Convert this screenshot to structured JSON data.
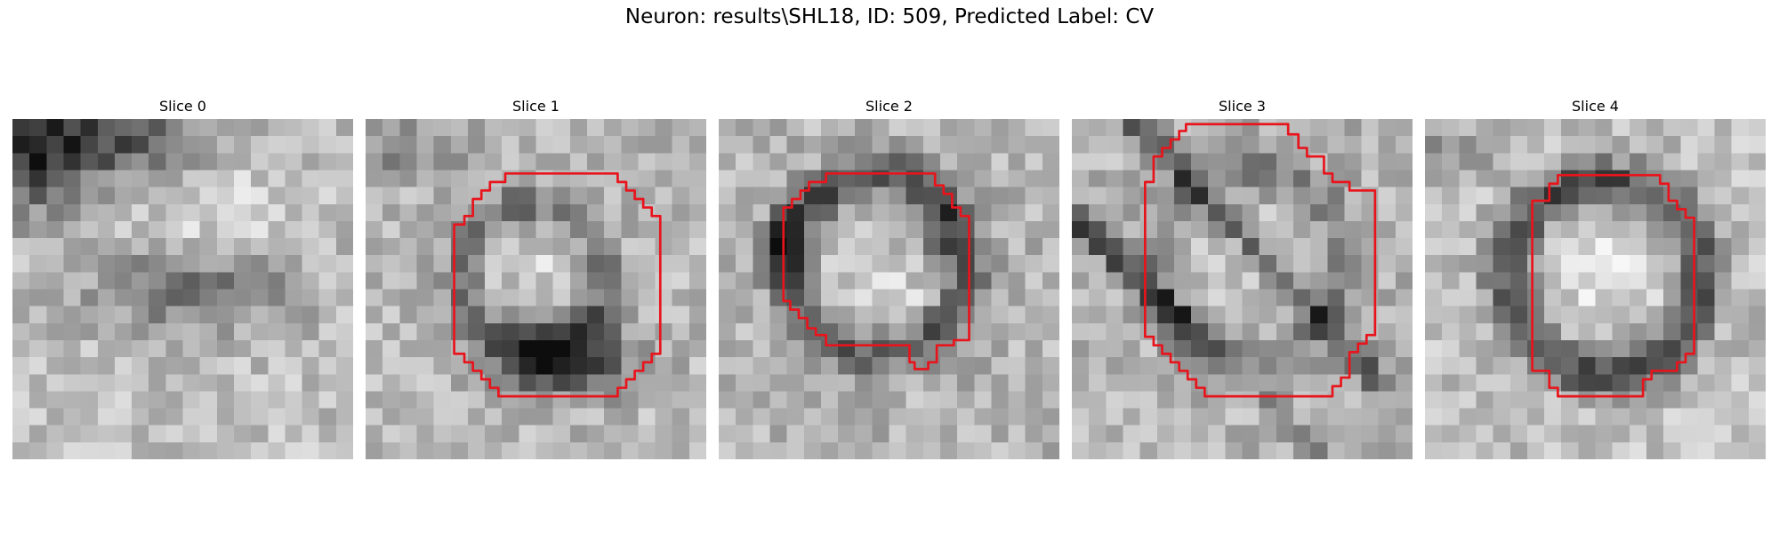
{
  "figure": {
    "title": "Neuron: results\\SHL18, ID: 509, Predicted Label: CV"
  },
  "colors": {
    "background": "#ffffff",
    "contour": "#e8141c",
    "image_colormap": "grayscale"
  },
  "panels": [
    {
      "title": "Slice 0",
      "has_contour": false,
      "dark_features": [
        {
          "kind": "band",
          "desc": "dark upper-left band"
        },
        {
          "kind": "blob",
          "desc": "dark central horizontal smear"
        }
      ]
    },
    {
      "title": "Slice 1",
      "has_contour": true,
      "contour": [
        [
          8.7,
          3.2
        ],
        [
          14.8,
          3.2
        ],
        [
          14.8,
          3.7
        ],
        [
          15.3,
          3.7
        ],
        [
          15.3,
          4.2
        ],
        [
          15.8,
          4.2
        ],
        [
          15.8,
          4.7
        ],
        [
          16.3,
          4.7
        ],
        [
          16.3,
          5.2
        ],
        [
          16.8,
          5.2
        ],
        [
          16.8,
          5.7
        ],
        [
          17.3,
          5.7
        ],
        [
          17.3,
          13.8
        ],
        [
          16.8,
          13.8
        ],
        [
          16.8,
          14.3
        ],
        [
          16.3,
          14.3
        ],
        [
          16.3,
          14.8
        ],
        [
          15.8,
          14.8
        ],
        [
          15.8,
          15.3
        ],
        [
          15.3,
          15.3
        ],
        [
          15.3,
          15.8
        ],
        [
          14.8,
          15.8
        ],
        [
          14.8,
          16.3
        ],
        [
          7.8,
          16.3
        ],
        [
          7.8,
          15.8
        ],
        [
          7.3,
          15.8
        ],
        [
          7.3,
          15.3
        ],
        [
          6.8,
          15.3
        ],
        [
          6.8,
          14.8
        ],
        [
          6.3,
          14.8
        ],
        [
          6.3,
          14.3
        ],
        [
          5.8,
          14.3
        ],
        [
          5.8,
          13.8
        ],
        [
          5.2,
          13.8
        ],
        [
          5.2,
          6.2
        ],
        [
          5.8,
          6.2
        ],
        [
          5.8,
          5.7
        ],
        [
          6.3,
          5.7
        ],
        [
          6.3,
          4.7
        ],
        [
          6.8,
          4.7
        ],
        [
          6.8,
          4.2
        ],
        [
          7.3,
          4.2
        ],
        [
          7.3,
          3.7
        ],
        [
          8.2,
          3.7
        ],
        [
          8.2,
          3.2
        ]
      ],
      "dark_features": [
        {
          "kind": "blob",
          "desc": "dark lower-center blob"
        },
        {
          "kind": "ring",
          "desc": "faint dark ring"
        }
      ]
    },
    {
      "title": "Slice 2",
      "has_contour": true,
      "contour": [
        [
          6.3,
          3.2
        ],
        [
          12.7,
          3.2
        ],
        [
          12.7,
          3.9
        ],
        [
          13.2,
          3.9
        ],
        [
          13.2,
          4.4
        ],
        [
          13.7,
          4.4
        ],
        [
          13.7,
          5.2
        ],
        [
          14.2,
          5.2
        ],
        [
          14.2,
          5.7
        ],
        [
          14.7,
          5.7
        ],
        [
          14.7,
          13.0
        ],
        [
          13.8,
          13.0
        ],
        [
          13.8,
          13.3
        ],
        [
          12.8,
          13.3
        ],
        [
          12.8,
          14.3
        ],
        [
          12.3,
          14.3
        ],
        [
          12.3,
          14.7
        ],
        [
          11.5,
          14.7
        ],
        [
          11.5,
          14.3
        ],
        [
          11.2,
          14.3
        ],
        [
          11.2,
          13.3
        ],
        [
          6.3,
          13.3
        ],
        [
          6.3,
          12.7
        ],
        [
          5.7,
          12.7
        ],
        [
          5.7,
          12.3
        ],
        [
          5.2,
          12.3
        ],
        [
          5.2,
          11.7
        ],
        [
          4.7,
          11.7
        ],
        [
          4.7,
          11.2
        ],
        [
          4.2,
          11.2
        ],
        [
          4.2,
          10.7
        ],
        [
          3.8,
          10.7
        ],
        [
          3.8,
          5.2
        ],
        [
          4.3,
          5.2
        ],
        [
          4.3,
          4.7
        ],
        [
          4.8,
          4.7
        ],
        [
          4.8,
          4.2
        ],
        [
          5.3,
          4.2
        ],
        [
          5.3,
          3.7
        ],
        [
          6.3,
          3.7
        ]
      ],
      "dark_features": [
        {
          "kind": "ring",
          "desc": "dark membrane ring"
        }
      ]
    },
    {
      "title": "Slice 3",
      "has_contour": true,
      "contour": [
        [
          6.7,
          0.3
        ],
        [
          12.7,
          0.3
        ],
        [
          12.7,
          0.9
        ],
        [
          13.3,
          0.9
        ],
        [
          13.3,
          1.7
        ],
        [
          13.8,
          1.7
        ],
        [
          13.8,
          2.2
        ],
        [
          14.8,
          2.2
        ],
        [
          14.8,
          3.2
        ],
        [
          15.3,
          3.2
        ],
        [
          15.3,
          3.7
        ],
        [
          16.3,
          3.7
        ],
        [
          16.3,
          4.2
        ],
        [
          17.8,
          4.2
        ],
        [
          17.8,
          12.7
        ],
        [
          17.3,
          12.7
        ],
        [
          17.3,
          13.2
        ],
        [
          16.8,
          13.2
        ],
        [
          16.8,
          13.7
        ],
        [
          16.3,
          13.7
        ],
        [
          16.3,
          15.2
        ],
        [
          15.8,
          15.2
        ],
        [
          15.8,
          15.7
        ],
        [
          15.3,
          15.7
        ],
        [
          15.3,
          16.3
        ],
        [
          7.8,
          16.3
        ],
        [
          7.8,
          15.8
        ],
        [
          7.3,
          15.8
        ],
        [
          7.3,
          15.3
        ],
        [
          6.8,
          15.3
        ],
        [
          6.8,
          14.8
        ],
        [
          6.3,
          14.8
        ],
        [
          6.3,
          14.3
        ],
        [
          5.8,
          14.3
        ],
        [
          5.8,
          13.8
        ],
        [
          5.3,
          13.8
        ],
        [
          5.3,
          13.3
        ],
        [
          4.8,
          13.3
        ],
        [
          4.8,
          12.8
        ],
        [
          4.3,
          12.8
        ],
        [
          4.3,
          3.7
        ],
        [
          4.8,
          3.7
        ],
        [
          4.8,
          2.2
        ],
        [
          5.3,
          2.2
        ],
        [
          5.3,
          1.7
        ],
        [
          5.8,
          1.7
        ],
        [
          5.8,
          1.2
        ],
        [
          6.3,
          1.2
        ],
        [
          6.3,
          0.7
        ],
        [
          6.7,
          0.7
        ]
      ],
      "dark_features": [
        {
          "kind": "arc",
          "desc": "dark diagonal arcs"
        }
      ]
    },
    {
      "title": "Slice 4",
      "has_contour": true,
      "contour": [
        [
          7.8,
          3.3
        ],
        [
          13.8,
          3.3
        ],
        [
          13.8,
          3.8
        ],
        [
          14.3,
          3.8
        ],
        [
          14.3,
          4.8
        ],
        [
          14.8,
          4.8
        ],
        [
          14.8,
          5.3
        ],
        [
          15.3,
          5.3
        ],
        [
          15.3,
          5.8
        ],
        [
          15.8,
          5.8
        ],
        [
          15.8,
          13.8
        ],
        [
          15.3,
          13.8
        ],
        [
          15.3,
          14.3
        ],
        [
          14.8,
          14.3
        ],
        [
          14.8,
          14.8
        ],
        [
          13.3,
          14.8
        ],
        [
          13.3,
          15.3
        ],
        [
          12.8,
          15.3
        ],
        [
          12.8,
          16.3
        ],
        [
          7.8,
          16.3
        ],
        [
          7.8,
          15.8
        ],
        [
          7.3,
          15.8
        ],
        [
          7.3,
          14.8
        ],
        [
          6.3,
          14.8
        ],
        [
          6.3,
          4.8
        ],
        [
          7.3,
          4.8
        ],
        [
          7.3,
          3.8
        ],
        [
          7.8,
          3.8
        ]
      ],
      "dark_features": [
        {
          "kind": "ring",
          "desc": "dark thick ring"
        }
      ]
    }
  ]
}
